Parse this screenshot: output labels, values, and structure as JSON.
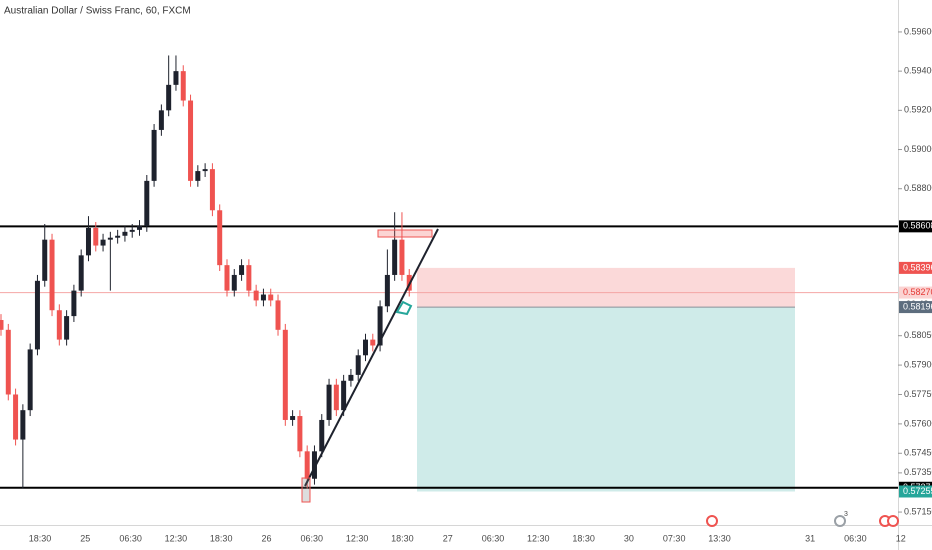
{
  "chart_data": {
    "type": "candlestick",
    "title": "Australian Dollar / Swiss Franc, 60, FXCM",
    "categories": [
      "18:30",
      "25",
      "06:30",
      "12:30",
      "18:30",
      "26",
      "06:30",
      "12:30",
      "18:30",
      "27",
      "06:30",
      "12:30",
      "18:30",
      "30",
      "07:30",
      "13:30",
      null,
      "31",
      "06:30",
      "12"
    ],
    "open": [
      0.5813,
      0.5808,
      0.5775,
      0.5752,
      0.5767,
      0.5798,
      0.5833,
      0.5854,
      0.5818,
      0.5803,
      0.5815,
      0.5828,
      0.5846,
      0.586,
      0.5851,
      0.5854,
      0.5855,
      0.5856,
      0.5858,
      0.5859,
      0.5861,
      0.5884,
      0.591,
      0.592,
      0.5933,
      0.594,
      0.5925,
      0.5884,
      0.5889,
      0.589,
      0.5869,
      0.5841,
      0.5828,
      0.5836,
      0.5841,
      0.5828,
      0.5823,
      0.5826,
      0.5823,
      0.5808,
      0.5762,
      0.5764,
      0.5746,
      0.5732,
      0.5746,
      0.5762,
      0.578,
      0.5767,
      0.5782,
      0.5785,
      0.5795,
      0.5803,
      0.58,
      0.582,
      0.5836,
      0.5854,
      0.5836
    ],
    "high": [
      0.5816,
      0.5811,
      0.5778,
      0.577,
      0.5801,
      0.5836,
      0.5862,
      0.5857,
      0.5821,
      0.5818,
      0.5831,
      0.5849,
      0.5866,
      0.5863,
      0.5857,
      0.5858,
      0.5859,
      0.5861,
      0.5862,
      0.5864,
      0.5887,
      0.5913,
      0.5923,
      0.5948,
      0.5948,
      0.5943,
      0.5928,
      0.5892,
      0.5893,
      0.5893,
      0.5872,
      0.5844,
      0.5839,
      0.5844,
      0.5844,
      0.5831,
      0.5829,
      0.5829,
      0.5826,
      0.5811,
      0.5767,
      0.5767,
      0.5749,
      0.5749,
      0.5765,
      0.5783,
      0.5783,
      0.5785,
      0.5788,
      0.5798,
      0.5806,
      0.5806,
      0.5823,
      0.5849,
      0.5868,
      0.5868,
      0.5839
    ],
    "low": [
      0.5805,
      0.5772,
      0.5749,
      0.5727,
      0.5764,
      0.5795,
      0.583,
      0.5815,
      0.58,
      0.58,
      0.5812,
      0.5825,
      0.5843,
      0.5848,
      0.5848,
      0.5828,
      0.5852,
      0.5853,
      0.5855,
      0.5856,
      0.5858,
      0.5881,
      0.5907,
      0.5917,
      0.593,
      0.5922,
      0.5881,
      0.5881,
      0.5886,
      0.5866,
      0.5838,
      0.5825,
      0.5825,
      0.5833,
      0.5825,
      0.582,
      0.582,
      0.582,
      0.5805,
      0.5759,
      0.5759,
      0.5743,
      0.5727,
      0.5729,
      0.5743,
      0.5759,
      0.5764,
      0.5764,
      0.5779,
      0.5782,
      0.5792,
      0.5797,
      0.5797,
      0.5817,
      0.5833,
      0.5833,
      0.5825
    ],
    "close": [
      0.5808,
      0.5775,
      0.5752,
      0.5767,
      0.5798,
      0.5833,
      0.5854,
      0.5818,
      0.5803,
      0.5815,
      0.5828,
      0.5846,
      0.586,
      0.5851,
      0.5854,
      0.5855,
      0.5856,
      0.5858,
      0.5859,
      0.5861,
      0.5884,
      0.591,
      0.592,
      0.5933,
      0.594,
      0.5925,
      0.5884,
      0.5889,
      0.589,
      0.5869,
      0.5841,
      0.5828,
      0.5836,
      0.5841,
      0.5828,
      0.5823,
      0.5826,
      0.5823,
      0.5808,
      0.5762,
      0.5764,
      0.5746,
      0.5732,
      0.5746,
      0.5762,
      0.578,
      0.5767,
      0.5782,
      0.5785,
      0.5795,
      0.5803,
      0.58,
      0.582,
      0.5836,
      0.5854,
      0.5836,
      0.5828
    ],
    "up_color": "#1e222d",
    "down_color": "#ef5350",
    "ylim": [
      0.57084,
      0.59763
    ],
    "yticks": [
      {
        "value": 0.596,
        "label": "0.59600"
      },
      {
        "value": 0.594,
        "label": "0.59400"
      },
      {
        "value": 0.592,
        "label": "0.59200"
      },
      {
        "value": 0.59,
        "label": "0.59000"
      },
      {
        "value": 0.588,
        "label": "0.58800"
      },
      {
        "value": 0.5805,
        "label": "0.58050"
      },
      {
        "value": 0.579,
        "label": "0.57900"
      },
      {
        "value": 0.5775,
        "label": "0.57750"
      },
      {
        "value": 0.576,
        "label": "0.57600"
      },
      {
        "value": 0.5745,
        "label": "0.57450"
      },
      {
        "value": 0.5735,
        "label": "0.57350"
      },
      {
        "value": 0.5715,
        "label": "0.57150"
      }
    ],
    "hlines": [
      0.58608,
      0.57274
    ],
    "hline_color": "#000000",
    "last_price": {
      "value": 0.5827,
      "label": "0.58270"
    },
    "countdown": "00:42",
    "position": {
      "stop": 0.58396,
      "entry": 0.58196,
      "target": 0.57255
    },
    "event_badge": "3"
  }
}
